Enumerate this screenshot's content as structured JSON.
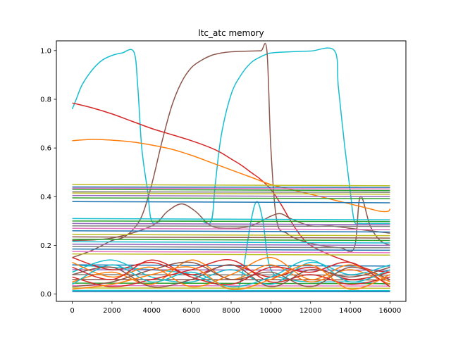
{
  "chart_data": {
    "type": "line",
    "title": "ltc_atc memory",
    "xlabel": "",
    "ylabel": "",
    "xlim": [
      -800,
      16800
    ],
    "ylim": [
      -0.03,
      1.04
    ],
    "xticks": [
      0,
      2000,
      4000,
      6000,
      8000,
      10000,
      12000,
      14000,
      16000
    ],
    "xtick_labels": [
      "0",
      "2000",
      "4000",
      "6000",
      "8000",
      "10000",
      "12000",
      "14000",
      "16000"
    ],
    "yticks": [
      0.0,
      0.2,
      0.4,
      0.6,
      0.8,
      1.0
    ],
    "ytick_labels": [
      "0.0",
      "0.2",
      "0.4",
      "0.6",
      "0.8",
      "1.0"
    ],
    "grid": false,
    "palette": [
      "#1f77b4",
      "#ff7f0e",
      "#2ca02c",
      "#d62728",
      "#9467bd",
      "#8c564b",
      "#e377c2",
      "#7f7f7f",
      "#bcbd22",
      "#17becf"
    ],
    "series": [
      {
        "color": "#17becf",
        "x": [
          0,
          200,
          500,
          1000,
          1500,
          2000,
          2500,
          3100,
          3300,
          3500,
          3800,
          4000,
          4500,
          5000,
          5500,
          6000,
          6500,
          7000,
          7200,
          7500,
          8000,
          8500,
          9000,
          9500,
          10000,
          11000,
          12000,
          13200,
          13400,
          13700,
          14000,
          14200,
          14500,
          15000,
          15500,
          16000
        ],
        "y": [
          0.76,
          0.8,
          0.86,
          0.92,
          0.96,
          0.98,
          0.99,
          0.995,
          0.85,
          0.6,
          0.42,
          0.3,
          0.3,
          0.3,
          0.3,
          0.3,
          0.3,
          0.3,
          0.45,
          0.65,
          0.82,
          0.9,
          0.95,
          0.975,
          0.99,
          0.995,
          0.998,
          1.0,
          0.85,
          0.62,
          0.42,
          0.3,
          0.29,
          0.29,
          0.29,
          0.29
        ]
      },
      {
        "color": "#8c564b",
        "x": [
          0,
          1000,
          2000,
          2500,
          3000,
          3500,
          4000,
          4500,
          5000,
          5500,
          6000,
          6500,
          7000,
          7500,
          8000,
          8500,
          9000,
          9500,
          9800,
          10000,
          10300,
          10800,
          11500,
          12500,
          13500,
          14200,
          14500,
          15000,
          15500,
          16000
        ],
        "y": [
          0.15,
          0.18,
          0.22,
          0.23,
          0.26,
          0.32,
          0.45,
          0.62,
          0.77,
          0.87,
          0.93,
          0.96,
          0.98,
          0.99,
          0.995,
          0.997,
          0.998,
          0.999,
          1.0,
          0.6,
          0.3,
          0.25,
          0.22,
          0.2,
          0.19,
          0.19,
          0.4,
          0.28,
          0.22,
          0.2
        ]
      },
      {
        "color": "#d62728",
        "x": [
          0,
          1000,
          2000,
          3000,
          4000,
          5000,
          6000,
          7000,
          7500,
          8000,
          8500,
          9000,
          9500,
          10000,
          10500,
          11000,
          11500,
          12000,
          13000,
          14000,
          15000,
          16000
        ],
        "y": [
          0.785,
          0.765,
          0.74,
          0.71,
          0.68,
          0.655,
          0.63,
          0.6,
          0.58,
          0.555,
          0.53,
          0.5,
          0.47,
          0.43,
          0.37,
          0.3,
          0.24,
          0.2,
          0.16,
          0.13,
          0.1,
          0.09
        ]
      },
      {
        "color": "#ff7f0e",
        "x": [
          0,
          1000,
          2000,
          3000,
          4000,
          5000,
          6000,
          7000,
          8000,
          9000,
          10000,
          11000,
          12000,
          13000,
          14000,
          15000,
          15500,
          15900,
          16000
        ],
        "y": [
          0.63,
          0.635,
          0.632,
          0.625,
          0.612,
          0.595,
          0.57,
          0.54,
          0.51,
          0.48,
          0.45,
          0.43,
          0.41,
          0.39,
          0.37,
          0.35,
          0.34,
          0.34,
          0.35
        ]
      },
      {
        "color": "#8c564b",
        "x": [
          0,
          2000,
          4000,
          4800,
          5500,
          6200,
          7000,
          8000,
          9000,
          10000,
          10500,
          11000,
          12000,
          13000,
          14000,
          15000,
          16000
        ],
        "y": [
          0.22,
          0.23,
          0.28,
          0.34,
          0.37,
          0.34,
          0.28,
          0.27,
          0.28,
          0.32,
          0.33,
          0.31,
          0.28,
          0.28,
          0.27,
          0.26,
          0.25
        ]
      },
      {
        "color": "#17becf",
        "x": [
          0,
          2000,
          4000,
          6000,
          8000,
          8500,
          9000,
          9300,
          9600,
          10000,
          11000,
          12000,
          14000,
          16000
        ],
        "y": [
          0.12,
          0.11,
          0.1,
          0.08,
          0.02,
          0.06,
          0.3,
          0.38,
          0.3,
          0.1,
          0.06,
          0.05,
          0.05,
          0.04
        ]
      },
      {
        "color": "#1f77b4",
        "x": [
          0,
          16000
        ],
        "y": [
          0.38,
          0.375
        ]
      },
      {
        "color": "#2ca02c",
        "x": [
          0,
          16000
        ],
        "y": [
          0.395,
          0.392
        ]
      },
      {
        "color": "#9467bd",
        "x": [
          0,
          16000
        ],
        "y": [
          0.405,
          0.4
        ]
      },
      {
        "color": "#bcbd22",
        "x": [
          0,
          16000
        ],
        "y": [
          0.415,
          0.41
        ]
      },
      {
        "color": "#7f7f7f",
        "x": [
          0,
          16000
        ],
        "y": [
          0.42,
          0.418
        ]
      },
      {
        "color": "#2ca02c",
        "x": [
          0,
          16000
        ],
        "y": [
          0.43,
          0.425
        ]
      },
      {
        "color": "#e377c2",
        "x": [
          0,
          16000
        ],
        "y": [
          0.435,
          0.432
        ]
      },
      {
        "color": "#1f77b4",
        "x": [
          0,
          16000
        ],
        "y": [
          0.44,
          0.438
        ]
      },
      {
        "color": "#bcbd22",
        "x": [
          0,
          16000
        ],
        "y": [
          0.45,
          0.445
        ]
      },
      {
        "color": "#17becf",
        "x": [
          0,
          16000
        ],
        "y": [
          0.31,
          0.305
        ]
      },
      {
        "color": "#2ca02c",
        "x": [
          0,
          16000
        ],
        "y": [
          0.3,
          0.298
        ]
      },
      {
        "color": "#9467bd",
        "x": [
          0,
          16000
        ],
        "y": [
          0.29,
          0.285
        ]
      },
      {
        "color": "#7f7f7f",
        "x": [
          0,
          16000
        ],
        "y": [
          0.28,
          0.278
        ]
      },
      {
        "color": "#e377c2",
        "x": [
          0,
          16000
        ],
        "y": [
          0.27,
          0.265
        ]
      },
      {
        "color": "#1f77b4",
        "x": [
          0,
          16000
        ],
        "y": [
          0.26,
          0.255
        ]
      },
      {
        "color": "#bcbd22",
        "x": [
          0,
          16000
        ],
        "y": [
          0.245,
          0.24
        ]
      },
      {
        "color": "#8c564b",
        "x": [
          0,
          16000
        ],
        "y": [
          0.235,
          0.23
        ]
      },
      {
        "color": "#2ca02c",
        "x": [
          0,
          16000
        ],
        "y": [
          0.225,
          0.22
        ]
      },
      {
        "color": "#17becf",
        "x": [
          0,
          16000
        ],
        "y": [
          0.215,
          0.21
        ]
      },
      {
        "color": "#9467bd",
        "x": [
          0,
          16000
        ],
        "y": [
          0.205,
          0.2
        ]
      },
      {
        "color": "#7f7f7f",
        "x": [
          0,
          16000
        ],
        "y": [
          0.195,
          0.19
        ]
      },
      {
        "color": "#1f77b4",
        "x": [
          0,
          16000
        ],
        "y": [
          0.185,
          0.18
        ]
      },
      {
        "color": "#e377c2",
        "x": [
          0,
          16000
        ],
        "y": [
          0.175,
          0.17
        ]
      },
      {
        "color": "#bcbd22",
        "x": [
          0,
          16000
        ],
        "y": [
          0.165,
          0.16
        ]
      },
      {
        "color": "#1f77b4",
        "x": [
          0,
          16000
        ],
        "y": [
          0.12,
          0.115
        ]
      },
      {
        "color": "#9467bd",
        "x": [
          0,
          16000
        ],
        "y": [
          0.1,
          0.098
        ]
      },
      {
        "color": "#7f7f7f",
        "x": [
          0,
          16000
        ],
        "y": [
          0.08,
          0.078
        ]
      },
      {
        "color": "#8c564b",
        "x": [
          0,
          16000
        ],
        "y": [
          0.06,
          0.058
        ]
      },
      {
        "color": "#2ca02c",
        "x": [
          0,
          16000
        ],
        "y": [
          0.045,
          0.043
        ]
      },
      {
        "color": "#e377c2",
        "x": [
          0,
          16000
        ],
        "y": [
          0.035,
          0.033
        ]
      },
      {
        "color": "#bcbd22",
        "x": [
          0,
          16000
        ],
        "y": [
          0.025,
          0.024
        ]
      },
      {
        "color": "#17becf",
        "x": [
          0,
          16000
        ],
        "y": [
          0.015,
          0.014
        ]
      },
      {
        "color": "#1f77b4",
        "x": [
          0,
          16000
        ],
        "y": [
          0.01,
          0.01
        ]
      },
      {
        "color": "#d62728",
        "x": [
          0,
          2000,
          4000,
          6000,
          8000,
          10000,
          12000,
          14000,
          16000
        ],
        "y": [
          0.15,
          0.1,
          0.13,
          0.08,
          0.12,
          0.07,
          0.11,
          0.06,
          0.09
        ]
      },
      {
        "color": "#ff7f0e",
        "x": [
          0,
          2000,
          4000,
          6000,
          8000,
          10000,
          12000,
          14000,
          16000
        ],
        "y": [
          0.05,
          0.09,
          0.04,
          0.14,
          0.06,
          0.12,
          0.05,
          0.1,
          0.04
        ]
      },
      {
        "color": "#17becf",
        "x": [
          0,
          2000,
          4000,
          6000,
          8000,
          10000,
          12000,
          14000,
          16000
        ],
        "y": [
          0.09,
          0.14,
          0.07,
          0.05,
          0.1,
          0.04,
          0.13,
          0.08,
          0.12
        ]
      },
      {
        "color": "#8c564b",
        "x": [
          0,
          2000,
          4000,
          6000,
          8000,
          10000,
          12000,
          14000,
          16000
        ],
        "y": [
          0.03,
          0.05,
          0.1,
          0.13,
          0.06,
          0.09,
          0.03,
          0.11,
          0.06
        ]
      },
      {
        "color": "#d62728",
        "x": [
          0,
          2000,
          4000,
          6000,
          8000,
          10000,
          12000,
          14000,
          16000
        ],
        "y": [
          0.07,
          0.03,
          0.06,
          0.1,
          0.14,
          0.05,
          0.08,
          0.04,
          0.07
        ]
      },
      {
        "color": "#ff7f0e",
        "x": [
          0,
          2000,
          4000,
          6000,
          8000,
          10000,
          12000,
          14000,
          16000
        ],
        "y": [
          0.13,
          0.07,
          0.11,
          0.03,
          0.08,
          0.15,
          0.06,
          0.12,
          0.05
        ]
      },
      {
        "color": "#17becf",
        "x": [
          0,
          2000,
          4000,
          6000,
          8000,
          10000,
          12000,
          14000,
          16000
        ],
        "y": [
          0.04,
          0.12,
          0.05,
          0.09,
          0.03,
          0.07,
          0.14,
          0.05,
          0.1
        ]
      },
      {
        "color": "#d62728",
        "x": [
          0,
          2000,
          4000,
          6000,
          8000,
          10000,
          12000,
          14000,
          16000
        ],
        "y": [
          0.11,
          0.06,
          0.14,
          0.07,
          0.04,
          0.11,
          0.09,
          0.13,
          0.03
        ]
      },
      {
        "color": "#8c564b",
        "x": [
          0,
          2000,
          4000,
          6000,
          8000,
          10000,
          12000,
          14000,
          16000
        ],
        "y": [
          0.08,
          0.11,
          0.03,
          0.06,
          0.12,
          0.03,
          0.1,
          0.07,
          0.11
        ]
      },
      {
        "color": "#ff7f0e",
        "x": [
          0,
          2000,
          4000,
          6000,
          8000,
          10000,
          12000,
          14000,
          16000
        ],
        "y": [
          0.02,
          0.04,
          0.08,
          0.11,
          0.02,
          0.06,
          0.12,
          0.02,
          0.08
        ]
      }
    ]
  }
}
